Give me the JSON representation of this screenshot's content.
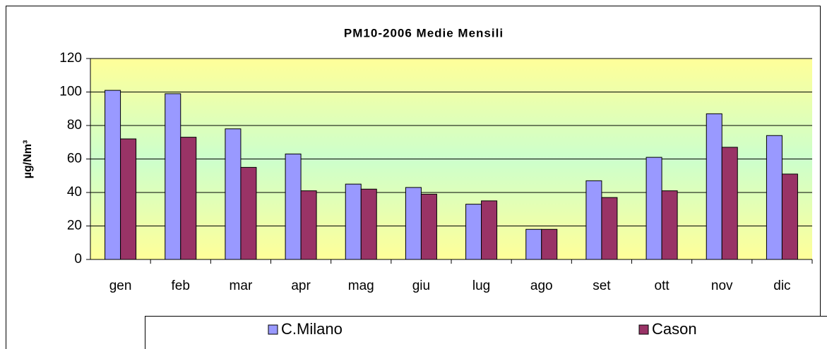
{
  "chart_data": {
    "type": "bar",
    "title": "PM10-2006  Medie Mensili",
    "y_label": "µg/Nm³",
    "categories": [
      "gen",
      "feb",
      "mar",
      "apr",
      "mag",
      "giu",
      "lug",
      "ago",
      "set",
      "ott",
      "nov",
      "dic"
    ],
    "series": [
      {
        "name": "C.Milano",
        "color": "#9999ff",
        "values": [
          101,
          99,
          78,
          63,
          45,
          43,
          33,
          18,
          47,
          61,
          87,
          74
        ]
      },
      {
        "name": "Cason",
        "color": "#993366",
        "values": [
          72,
          73,
          55,
          41,
          42,
          39,
          35,
          18,
          37,
          41,
          67,
          51
        ]
      }
    ],
    "ylim": [
      0,
      120
    ],
    "yticks": [
      0,
      20,
      40,
      60,
      80,
      100,
      120
    ],
    "grid": true
  }
}
